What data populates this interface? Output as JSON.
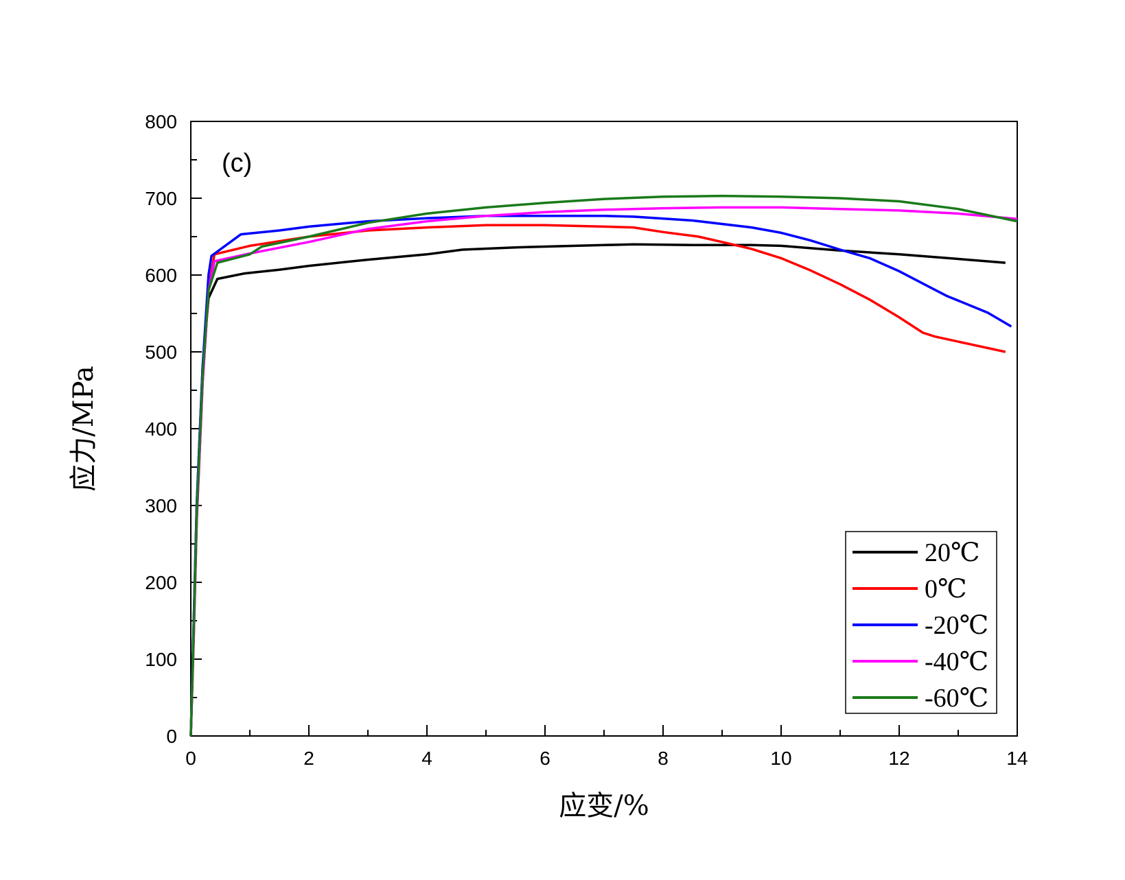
{
  "chart_data": {
    "type": "line",
    "panel_label": "(c)",
    "xlabel": "应变/%",
    "ylabel": "应力/MPa",
    "xlim": [
      0,
      14
    ],
    "ylim": [
      0,
      800
    ],
    "x_ticks": [
      0,
      2,
      4,
      6,
      8,
      10,
      12,
      14
    ],
    "y_ticks": [
      0,
      100,
      200,
      300,
      400,
      500,
      600,
      700,
      800
    ],
    "grid": false,
    "legend_position": "bottom-right",
    "series": [
      {
        "name": "20℃",
        "color": "#000000",
        "points": [
          [
            0,
            0
          ],
          [
            0.05,
            150
          ],
          [
            0.1,
            300
          ],
          [
            0.2,
            480
          ],
          [
            0.3,
            570
          ],
          [
            0.45,
            595
          ],
          [
            0.9,
            602
          ],
          [
            1.5,
            607
          ],
          [
            2,
            612
          ],
          [
            3,
            620
          ],
          [
            4,
            627
          ],
          [
            4.6,
            633
          ],
          [
            5.5,
            636
          ],
          [
            6.5,
            638
          ],
          [
            7.5,
            640
          ],
          [
            8.5,
            639
          ],
          [
            9.5,
            639
          ],
          [
            10,
            638
          ],
          [
            11,
            632
          ],
          [
            12,
            627
          ],
          [
            13,
            621
          ],
          [
            13.8,
            616
          ]
        ]
      },
      {
        "name": "0℃",
        "color": "#ff0000",
        "points": [
          [
            0,
            0
          ],
          [
            0.05,
            130
          ],
          [
            0.1,
            280
          ],
          [
            0.2,
            460
          ],
          [
            0.3,
            580
          ],
          [
            0.4,
            627
          ],
          [
            1,
            638
          ],
          [
            2,
            650
          ],
          [
            3,
            658
          ],
          [
            4,
            662
          ],
          [
            5,
            665
          ],
          [
            6,
            665
          ],
          [
            7,
            663
          ],
          [
            7.5,
            662
          ],
          [
            8,
            656
          ],
          [
            8.6,
            650
          ],
          [
            9,
            643
          ],
          [
            9.5,
            634
          ],
          [
            10,
            622
          ],
          [
            10.5,
            606
          ],
          [
            11,
            588
          ],
          [
            11.5,
            568
          ],
          [
            12,
            545
          ],
          [
            12.4,
            525
          ],
          [
            12.6,
            520
          ],
          [
            13.2,
            510
          ],
          [
            13.8,
            500
          ]
        ]
      },
      {
        "name": "-20℃",
        "color": "#0000ff",
        "points": [
          [
            0,
            0
          ],
          [
            0.05,
            150
          ],
          [
            0.1,
            300
          ],
          [
            0.2,
            480
          ],
          [
            0.3,
            600
          ],
          [
            0.35,
            625
          ],
          [
            0.85,
            653
          ],
          [
            1.5,
            658
          ],
          [
            2,
            663
          ],
          [
            3,
            670
          ],
          [
            4,
            674
          ],
          [
            5,
            677
          ],
          [
            6,
            677
          ],
          [
            7,
            677
          ],
          [
            7.5,
            676
          ],
          [
            8.5,
            671
          ],
          [
            9.5,
            662
          ],
          [
            10,
            655
          ],
          [
            10.5,
            645
          ],
          [
            11,
            633
          ],
          [
            11.5,
            622
          ],
          [
            12,
            605
          ],
          [
            12.5,
            585
          ],
          [
            12.8,
            573
          ],
          [
            13.5,
            551
          ],
          [
            13.9,
            533
          ]
        ]
      },
      {
        "name": "-40℃",
        "color": "#ff00ff",
        "points": [
          [
            0,
            0
          ],
          [
            0.05,
            130
          ],
          [
            0.1,
            280
          ],
          [
            0.2,
            460
          ],
          [
            0.3,
            580
          ],
          [
            0.4,
            618
          ],
          [
            1,
            628
          ],
          [
            2,
            643
          ],
          [
            3,
            660
          ],
          [
            4,
            670
          ],
          [
            5,
            677
          ],
          [
            6,
            682
          ],
          [
            7,
            685
          ],
          [
            8,
            687
          ],
          [
            9,
            688
          ],
          [
            10,
            688
          ],
          [
            11,
            686
          ],
          [
            12,
            684
          ],
          [
            13,
            680
          ],
          [
            14,
            673
          ]
        ]
      },
      {
        "name": "-60℃",
        "color": "#1a7a1a",
        "points": [
          [
            0,
            0
          ],
          [
            0.05,
            140
          ],
          [
            0.1,
            290
          ],
          [
            0.2,
            470
          ],
          [
            0.3,
            580
          ],
          [
            0.45,
            616
          ],
          [
            1,
            627
          ],
          [
            1.2,
            637
          ],
          [
            2,
            650
          ],
          [
            3,
            668
          ],
          [
            4,
            680
          ],
          [
            5,
            688
          ],
          [
            6,
            694
          ],
          [
            7,
            699
          ],
          [
            8,
            702
          ],
          [
            9,
            703
          ],
          [
            10,
            702
          ],
          [
            11,
            700
          ],
          [
            12,
            696
          ],
          [
            13,
            686
          ],
          [
            14,
            670
          ]
        ]
      }
    ]
  }
}
